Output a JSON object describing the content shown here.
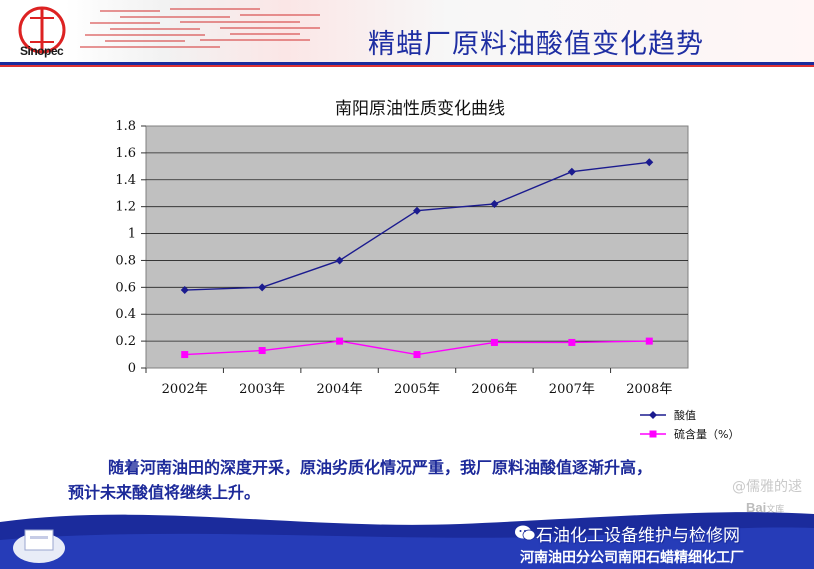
{
  "header": {
    "title": "精蜡厂原料油酸值变化趋势",
    "logo_text": "Sinopec",
    "logo_mark": "中国石化"
  },
  "colors": {
    "title_blue": "#1f2fa3",
    "series_acid": "#1b1b8f",
    "series_sulfur": "#ff00ff",
    "plot_bg": "#c0c0c0",
    "footer_blue": "#1b2b9c"
  },
  "chart_data": {
    "type": "line",
    "title": "南阳原油性质变化曲线",
    "categories": [
      "2002年",
      "2003年",
      "2004年",
      "2005年",
      "2006年",
      "2007年",
      "2008年"
    ],
    "series": [
      {
        "name": "酸值",
        "marker": "diamond",
        "color": "#1b1b8f",
        "values": [
          0.58,
          0.6,
          0.8,
          1.17,
          1.22,
          1.46,
          1.53
        ]
      },
      {
        "name": "硫含量（%）",
        "marker": "square",
        "color": "#ff00ff",
        "values": [
          0.1,
          0.13,
          0.2,
          0.1,
          0.19,
          0.19,
          0.2
        ]
      }
    ],
    "yticks": [
      "0",
      "0.2",
      "0.4",
      "0.6",
      "0.8",
      "1",
      "1.2",
      "1.4",
      "1.6",
      "1.8"
    ],
    "ylim": [
      0,
      1.8
    ],
    "grid": true,
    "legend": "bottom-right"
  },
  "conclusion": {
    "line1": "随着河南油田的深度开采，原油劣质化情况严重，我厂原料油酸值逐渐升高，",
    "line2": "预计未来酸值将继续上升。"
  },
  "watermark": {
    "author": "@儒雅的逑",
    "baidu": "Bai",
    "baidu_suffix": "文库"
  },
  "footer": {
    "brand": "石油化工设备维护与检修网",
    "org": "河南油田分公司南阳石蜡精细化工厂",
    "wechat_icon": "wechat-icon"
  }
}
